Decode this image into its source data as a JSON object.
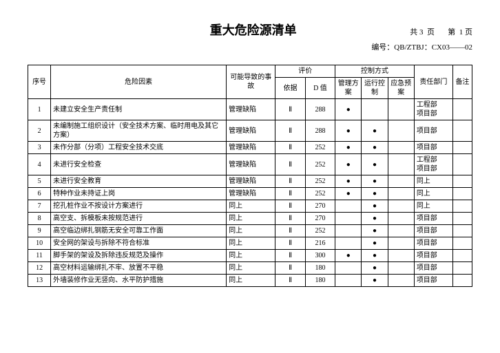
{
  "title": "重大危险源清单",
  "page_info": "共 3  页       第  1 页",
  "doc_code": "编号：QB/ZTBJ：CX03——02",
  "columns": {
    "seq": "序号",
    "hazard": "危险因素",
    "cause": "可能导致的事故",
    "eval": "评价",
    "basis": "依据",
    "dval": "D 值",
    "ctrl": "控制方式",
    "mgmt": "管理方案",
    "run": "运行控制",
    "emerg": "应急预案",
    "dept": "责任部门",
    "note": "备注"
  },
  "rows": [
    {
      "seq": "1",
      "hazard": "未建立安全生产责任制",
      "cause": "管理缺陷",
      "basis": "Ⅱ",
      "dval": "288",
      "mgmt": "●",
      "run": "",
      "emerg": "",
      "dept": "工程部\n项目部",
      "note": ""
    },
    {
      "seq": "2",
      "hazard": "未编制施工组织设计（安全技术方案、临时用电及其它方案）",
      "cause": "管理缺陷",
      "basis": "Ⅱ",
      "dval": "288",
      "mgmt": "●",
      "run": "●",
      "emerg": "",
      "dept": "项目部",
      "note": ""
    },
    {
      "seq": "3",
      "hazard": "未作分部（分项）工程安全技术交底",
      "cause": "管理缺陷",
      "basis": "Ⅱ",
      "dval": "252",
      "mgmt": "●",
      "run": "●",
      "emerg": "",
      "dept": "项目部",
      "note": ""
    },
    {
      "seq": "4",
      "hazard": "未进行安全检查",
      "cause": "管理缺陷",
      "basis": "Ⅱ",
      "dval": "252",
      "mgmt": "●",
      "run": "●",
      "emerg": "",
      "dept": "工程部\n项目部",
      "note": ""
    },
    {
      "seq": "5",
      "hazard": "未进行安全教育",
      "cause": "管理缺陷",
      "basis": "Ⅱ",
      "dval": "252",
      "mgmt": "●",
      "run": "●",
      "emerg": "",
      "dept": "同上",
      "note": ""
    },
    {
      "seq": "6",
      "hazard": "特种作业未持证上岗",
      "cause": "管理缺陷",
      "basis": "Ⅱ",
      "dval": "252",
      "mgmt": "●",
      "run": "●",
      "emerg": "",
      "dept": "同上",
      "note": ""
    },
    {
      "seq": "7",
      "hazard": "挖孔桩作业不按设计方案进行",
      "cause": "同上",
      "basis": "Ⅱ",
      "dval": "270",
      "mgmt": "",
      "run": "●",
      "emerg": "",
      "dept": "同上",
      "note": ""
    },
    {
      "seq": "8",
      "hazard": "高空支、拆模板未按规范进行",
      "cause": "同上",
      "basis": "Ⅱ",
      "dval": "270",
      "mgmt": "",
      "run": "●",
      "emerg": "",
      "dept": "项目部",
      "note": ""
    },
    {
      "seq": "9",
      "hazard": "高空临边绑扎钢筋无安全可靠工作面",
      "cause": "同上",
      "basis": "Ⅱ",
      "dval": "252",
      "mgmt": "",
      "run": "●",
      "emerg": "",
      "dept": "项目部",
      "note": ""
    },
    {
      "seq": "10",
      "hazard": "安全网的架设与拆除不符合标准",
      "cause": "同上",
      "basis": "Ⅱ",
      "dval": "216",
      "mgmt": "",
      "run": "●",
      "emerg": "",
      "dept": "项目部",
      "note": ""
    },
    {
      "seq": "11",
      "hazard": "脚手架的架设及拆除违反规范及操作",
      "cause": "同上",
      "basis": "Ⅱ",
      "dval": "300",
      "mgmt": "●",
      "run": "●",
      "emerg": "",
      "dept": "项目部",
      "note": ""
    },
    {
      "seq": "12",
      "hazard": "高空材料运输绑扎不牢、放置不平稳",
      "cause": "同上",
      "basis": "Ⅱ",
      "dval": "180",
      "mgmt": "",
      "run": "●",
      "emerg": "",
      "dept": "项目部",
      "note": ""
    },
    {
      "seq": "13",
      "hazard": "外墙装修作业无竖向、水平防护措施",
      "cause": "同上",
      "basis": "Ⅱ",
      "dval": "180",
      "mgmt": "",
      "run": "●",
      "emerg": "",
      "dept": "项目部",
      "note": ""
    }
  ]
}
